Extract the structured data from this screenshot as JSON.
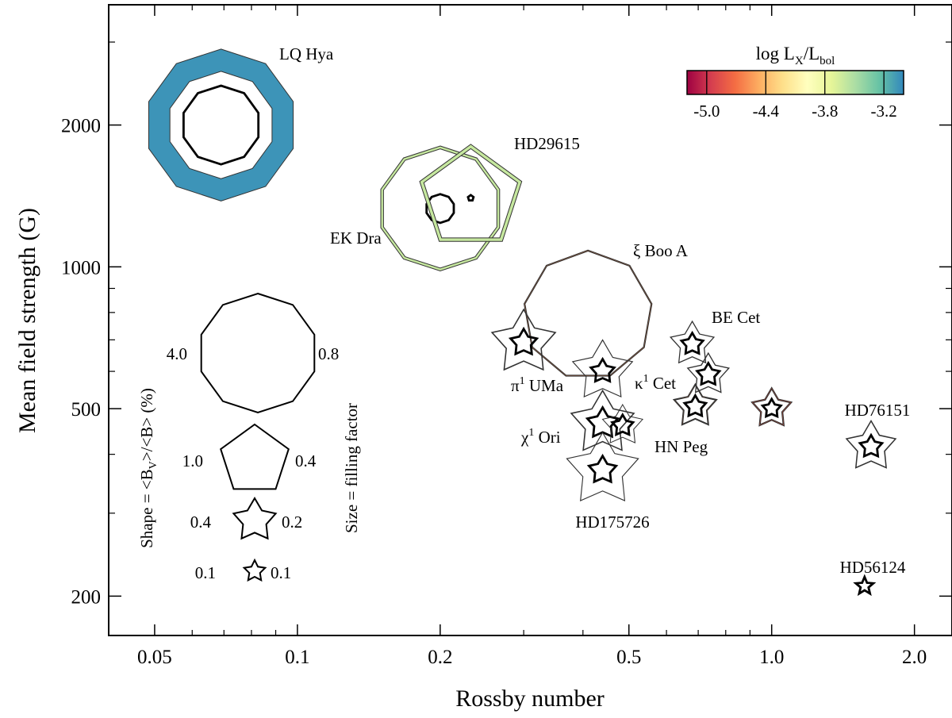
{
  "chart_data": {
    "type": "scatter",
    "title": "",
    "xlabel": "Rossby number",
    "ylabel": "Mean field strength (G)",
    "xscale": "log",
    "yscale": "log",
    "xlim": [
      0.04,
      2.4
    ],
    "ylim": [
      165,
      3600
    ],
    "xticks": [
      {
        "value": 0.05,
        "label": "0.05"
      },
      {
        "value": 0.1,
        "label": "0.1"
      },
      {
        "value": 0.2,
        "label": "0.2"
      },
      {
        "value": 0.5,
        "label": "0.5"
      },
      {
        "value": 1.0,
        "label": "1.0"
      },
      {
        "value": 2.0,
        "label": "2.0"
      }
    ],
    "yticks": [
      {
        "value": 200,
        "label": "200"
      },
      {
        "value": 500,
        "label": "500"
      },
      {
        "value": 1000,
        "label": "1000"
      },
      {
        "value": 2000,
        "label": "2000"
      }
    ],
    "colorbar": {
      "title_main": "log L",
      "title_sub1": "X",
      "title_mid": "/L",
      "title_sub2": "bol",
      "range": [
        -5.2,
        -3.0
      ],
      "ticks": [
        {
          "value": -5.0,
          "label": "-5.0"
        },
        {
          "value": -4.4,
          "label": "-4.4"
        },
        {
          "value": -3.8,
          "label": "-3.8"
        },
        {
          "value": -3.2,
          "label": "-3.2"
        }
      ],
      "colors": [
        "#9e0142",
        "#d53e4f",
        "#f46d43",
        "#fdae61",
        "#fee08b",
        "#ffffbf",
        "#e6f598",
        "#abdda4",
        "#66c2a5",
        "#3288bd"
      ]
    },
    "legend": {
      "shape_caption": "Shape = <B",
      "shape_caption_sub": "V",
      "shape_caption_end": ">/<B> (%)",
      "size_caption": "Size = filling factor",
      "entries": [
        {
          "shape_value": "4.0",
          "size_value": "0.8",
          "points": 10
        },
        {
          "shape_value": "1.0",
          "size_value": "0.4",
          "points": 5
        },
        {
          "shape_value": "0.4",
          "size_value": "0.2",
          "points": 5
        },
        {
          "shape_value": "0.1",
          "size_value": "0.1",
          "points": 5
        }
      ]
    },
    "stars": [
      {
        "name": "LQ Hya",
        "label_main": "LQ Hya",
        "ro": 0.069,
        "b": 2000,
        "b_max": 2600,
        "b_min": 1380,
        "b_mid": 1650,
        "logLx": -3.05,
        "vertices": 10,
        "ratio": 1.0
      },
      {
        "name": "EK Dra",
        "label_main": "EK Dra",
        "ro": 0.2,
        "b": 1330,
        "b_max": 1780,
        "b_min": 980,
        "b_mid": 1240,
        "logLx": -3.6,
        "vertices": 10,
        "ratio": 1.0
      },
      {
        "name": "HD29615",
        "label_main": "HD29615",
        "ro": 0.232,
        "b": 1400,
        "b_max": 1820,
        "b_min": 1100,
        "b_mid": 1380,
        "logLx": -3.6,
        "vertices": 5,
        "ratio": 1.0
      },
      {
        "name": "xi Boo A",
        "label_main": "ξ Boo A",
        "ro": 0.41,
        "b": 790,
        "b_max": 1080,
        "b_min": 575,
        "b_mid": 790,
        "logLx": -4.6,
        "vertices": 9,
        "ratio": 1.0
      },
      {
        "name": "pi1 UMa",
        "label_main": "π",
        "label_sup": "1",
        "label_end": " UMa",
        "ro": 0.3,
        "b": 690,
        "b_max": 810,
        "b_min": 585,
        "b_mid": 645,
        "logLx": -4.2,
        "vertices": 5,
        "ratio": 0.55
      },
      {
        "name": "kappa1 Cet",
        "label_main": "κ",
        "label_sup": "1",
        "label_end": " Cet",
        "ro": 0.44,
        "b": 600,
        "b_max": 700,
        "b_min": 515,
        "b_mid": 565,
        "logLx": -4.75,
        "vertices": 5,
        "ratio": 0.55
      },
      {
        "name": "BE Cet",
        "label_main": "BE Cet",
        "ro": 0.68,
        "b": 685,
        "b_max": 765,
        "b_min": 612,
        "b_mid": 648,
        "logLx": -4.5,
        "vertices": 5,
        "ratio": 0.55
      },
      {
        "name": "BE Cet 2",
        "label_main": "",
        "ro": 0.735,
        "b": 590,
        "b_max": 655,
        "b_min": 530,
        "b_mid": 557,
        "logLx": -4.5,
        "vertices": 5,
        "ratio": 0.55
      },
      {
        "name": "BE Cet 3",
        "label_main": "",
        "ro": 0.69,
        "b": 505,
        "b_max": 565,
        "b_min": 455,
        "b_mid": 478,
        "logLx": -4.6,
        "vertices": 5,
        "ratio": 0.55
      },
      {
        "name": "Star at Ro 1.0",
        "label_main": "",
        "ro": 1.0,
        "b": 500,
        "b_max": 555,
        "b_min": 455,
        "b_mid": 477,
        "logLx": -4.8,
        "vertices": 5,
        "ratio": 0.55
      },
      {
        "name": "chi1 Ori",
        "label_main": "χ",
        "label_sup": "1",
        "label_end": " Ori",
        "ro": 0.44,
        "b": 465,
        "b_max": 545,
        "b_min": 395,
        "b_mid": 430,
        "logLx": -4.7,
        "vertices": 5,
        "ratio": 0.55
      },
      {
        "name": "HN Peg",
        "label_main": "HN Peg",
        "ro": 0.485,
        "b": 460,
        "b_max": 510,
        "b_min": 415,
        "b_mid": 436,
        "logLx": -4.65,
        "vertices": 5,
        "ratio": 0.55
      },
      {
        "name": "HD175726",
        "label_main": "HD175726",
        "ro": 0.44,
        "b": 370,
        "b_max": 445,
        "b_min": 308,
        "b_mid": 345,
        "logLx": -4.6,
        "vertices": 5,
        "ratio": 0.55
      },
      {
        "name": "HD76151",
        "label_main": "HD76151",
        "ro": 1.62,
        "b": 415,
        "b_max": 470,
        "b_min": 365,
        "b_mid": 392,
        "logLx": -5.05,
        "vertices": 5,
        "ratio": 0.55
      },
      {
        "name": "HD56124",
        "label_main": "HD56124",
        "ro": 1.57,
        "b": 210,
        "b_max": 220,
        "b_min": 200,
        "b_mid": 210,
        "logLx": null,
        "vertices": 5,
        "ratio": 0.45
      }
    ]
  }
}
